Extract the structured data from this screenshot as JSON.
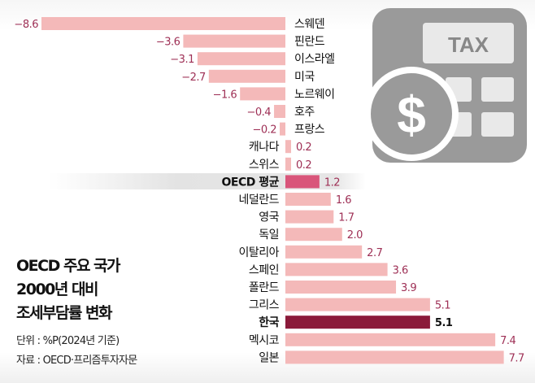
{
  "chart_data": {
    "type": "bar",
    "orientation": "horizontal",
    "title": [
      "OECD 주요 국가",
      "2000년 대비",
      "조세부담률 변화"
    ],
    "unit_note": "단위 : %P(2024년 기준)",
    "source_note": "자료 : OECD·프리즘투자자문",
    "categories": [
      "스웨덴",
      "핀란드",
      "이스라엘",
      "미국",
      "노르웨이",
      "호주",
      "프랑스",
      "캐나다",
      "스위스",
      "OECD 평균",
      "네덜란드",
      "영국",
      "독일",
      "이탈리아",
      "스페인",
      "폴란드",
      "그리스",
      "한국",
      "멕시코",
      "일본"
    ],
    "values": [
      -8.6,
      -3.6,
      -3.1,
      -2.7,
      -1.6,
      -0.4,
      -0.2,
      0.2,
      0.2,
      1.2,
      1.6,
      1.7,
      2.0,
      2.7,
      3.6,
      3.9,
      5.1,
      5.1,
      7.4,
      7.7
    ],
    "value_labels": [
      "−8.6",
      "−3.6",
      "−3.1",
      "−2.7",
      "−1.6",
      "−0.4",
      "−0.2",
      "0.2",
      "0.2",
      "1.2",
      "1.6",
      "1.7",
      "2.0",
      "2.7",
      "3.6",
      "3.9",
      "5.1",
      "5.1",
      "7.4",
      "7.7"
    ],
    "highlight": {
      "OECD 평균": "#d9557a",
      "한국": "#8b1a3a"
    },
    "colors": {
      "bar": "#f4b9b9",
      "value_text": "#9e2f55",
      "highlight_value_text": "#111111"
    },
    "xlim": [
      -8.6,
      7.7
    ],
    "grid": false
  },
  "decoration": {
    "icon": "tax-calculator-icon",
    "icon_text": "TAX"
  }
}
